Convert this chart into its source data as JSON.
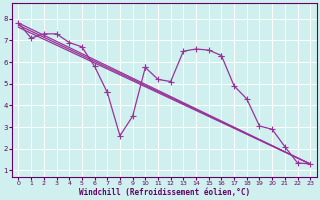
{
  "xlabel": "Windchill (Refroidissement éolien,°C)",
  "background_color": "#cff0ee",
  "grid_color": "#ffffff",
  "line_color": "#993399",
  "xlim": [
    -0.5,
    23.5
  ],
  "ylim": [
    0.7,
    8.7
  ],
  "yticks": [
    1,
    2,
    3,
    4,
    5,
    6,
    7,
    8
  ],
  "xticks": [
    0,
    1,
    2,
    3,
    4,
    5,
    6,
    7,
    8,
    9,
    10,
    11,
    12,
    13,
    14,
    15,
    16,
    17,
    18,
    19,
    20,
    21,
    22,
    23
  ],
  "series": [
    {
      "x": [
        0,
        1,
        2,
        3,
        4,
        5,
        6,
        7,
        7,
        8,
        9,
        10,
        11,
        12,
        13,
        14,
        15,
        16,
        17
      ],
      "y": [
        7.8,
        7.1,
        7.3,
        7.3,
        6.9,
        6.7,
        5.8,
        4.6,
        4.6,
        2.6,
        3.5,
        5.75,
        5.2,
        5.1,
        6.5,
        6.6,
        6.55,
        6.3,
        4.9
      ],
      "has_markers": true
    },
    {
      "x": [
        15,
        16,
        17,
        18,
        19,
        20,
        21,
        22,
        23
      ],
      "y": [
        6.55,
        6.3,
        4.9,
        4.3,
        3.05,
        2.9,
        2.1,
        1.35,
        1.3
      ],
      "has_markers": true
    },
    {
      "x": [
        0,
        23
      ],
      "y": [
        7.8,
        1.3
      ],
      "has_markers": false
    },
    {
      "x": [
        0,
        23
      ],
      "y": [
        7.65,
        1.3
      ],
      "has_markers": false
    },
    {
      "x": [
        0,
        23
      ],
      "y": [
        7.55,
        1.3
      ],
      "has_markers": false
    }
  ]
}
